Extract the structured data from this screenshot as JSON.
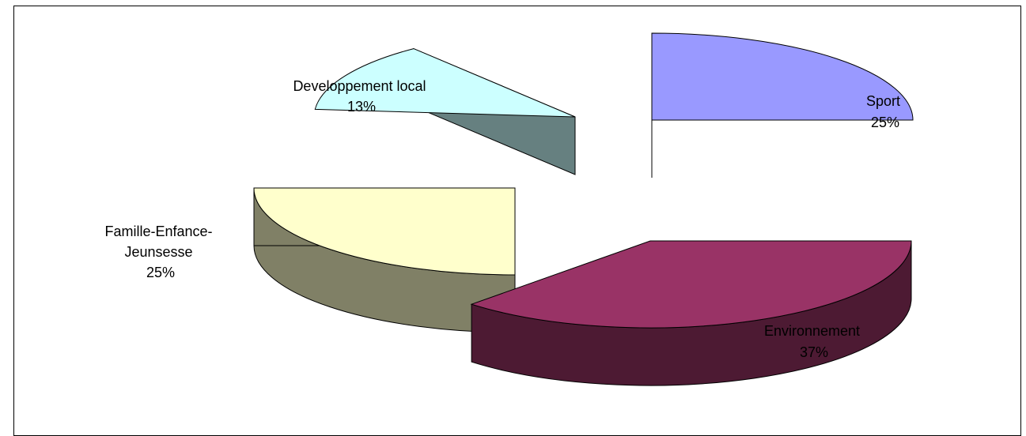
{
  "chart_data": {
    "type": "pie",
    "title": "",
    "style": "3d-exploded",
    "slices": [
      {
        "key": "sport",
        "name": "Sport",
        "value": 25,
        "pct": "25%",
        "color": "#9999ff",
        "side_color": "#4b4b80"
      },
      {
        "key": "env",
        "name": "Environnement",
        "value": 37,
        "pct": "37%",
        "color": "#993366",
        "side_color": "#4d1a33"
      },
      {
        "key": "famille",
        "name": "Famille-Enfance-\nJeunsesse",
        "value": 25,
        "pct": "25%",
        "color": "#ffffcc",
        "side_color": "#808066"
      },
      {
        "key": "dev",
        "name": "Developpement local",
        "value": 13,
        "pct": "13%",
        "color": "#ccffff",
        "side_color": "#668080"
      }
    ]
  }
}
